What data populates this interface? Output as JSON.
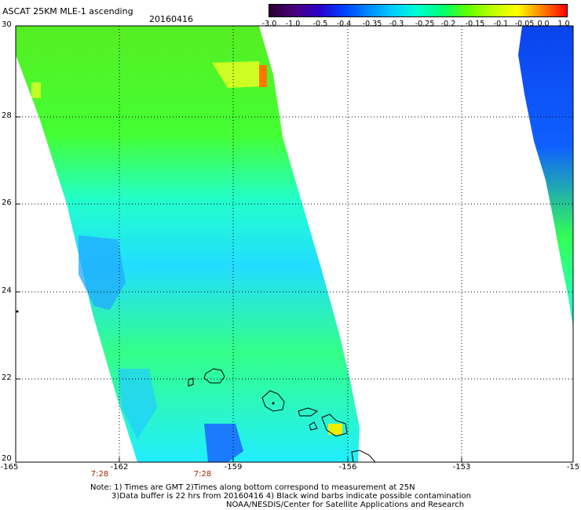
{
  "header": {
    "title": "ASCAT 25KM MLE-1 ascending",
    "date": "20160416"
  },
  "colorbar": {
    "labels": [
      "-3.0",
      "-1.0",
      "-0.5",
      "-0.4",
      "-0.35",
      "-0.3",
      "-0.25",
      "-0.2",
      "-0.15",
      "-0.1",
      "-0.05",
      "0.0",
      "1.0"
    ],
    "colors": [
      "#2a0030",
      "#4a007a",
      "#2a00c8",
      "#0040ff",
      "#0088ff",
      "#00d0ff",
      "#00ffd0",
      "#00ff70",
      "#60ff00",
      "#c0ff00",
      "#ffff00",
      "#ff8000",
      "#ff0000"
    ]
  },
  "axes": {
    "lat_labels": [
      "30",
      "28",
      "26",
      "24",
      "22",
      "20"
    ],
    "lon_labels": [
      "-165",
      "-162",
      "-159",
      "-156",
      "-153",
      "-15"
    ],
    "time_labels": [
      "7:28",
      "7:28"
    ]
  },
  "notes": {
    "line1": "Note: 1) Times are GMT 2)Times along bottom correspond to measurement at 25N",
    "line2": "3)Data buffer is 22 hrs from 20160416 4) Black wind barbs indicate possible contamination",
    "line3": "NOAA/NESDIS/Center for Satellite Applications and Research"
  }
}
